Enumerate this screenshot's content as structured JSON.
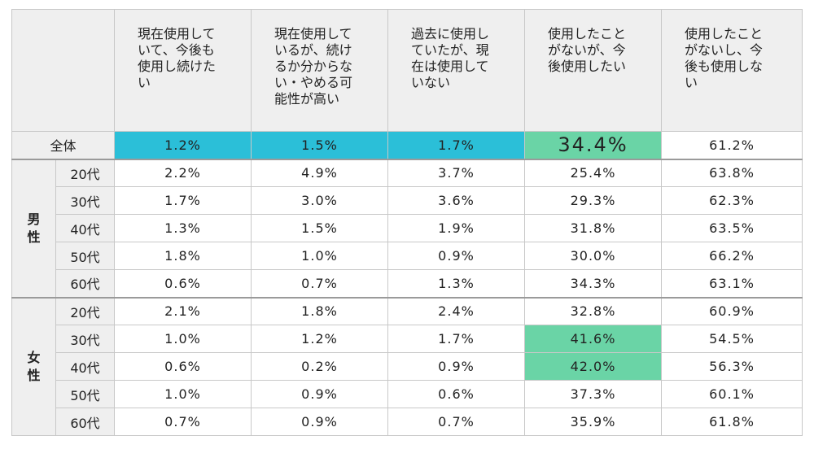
{
  "columns": [
    "現在使用して\nいて、今後も\n使用し続けた\nい",
    "現在使用して\nいるが、続け\nるか分からな\nい・やめる可\n能性が高い",
    "過去に使用し\nていたが、現\n在は使用して\nいない",
    "使用したこと\nがないが、今\n後使用したい",
    "使用したこと\nがないし、今\n後も使用しな\nい"
  ],
  "total": {
    "label": "全体",
    "values": [
      "1.2%",
      "1.5%",
      "1.7%",
      "34.4%",
      "61.2%"
    ]
  },
  "groups": [
    {
      "label": "男\n性",
      "rows": [
        {
          "age": "20代",
          "values": [
            "2.2%",
            "4.9%",
            "3.7%",
            "25.4%",
            "63.8%"
          ]
        },
        {
          "age": "30代",
          "values": [
            "1.7%",
            "3.0%",
            "3.6%",
            "29.3%",
            "62.3%"
          ]
        },
        {
          "age": "40代",
          "values": [
            "1.3%",
            "1.5%",
            "1.9%",
            "31.8%",
            "63.5%"
          ]
        },
        {
          "age": "50代",
          "values": [
            "1.8%",
            "1.0%",
            "0.9%",
            "30.0%",
            "66.2%"
          ]
        },
        {
          "age": "60代",
          "values": [
            "0.6%",
            "0.7%",
            "1.3%",
            "34.3%",
            "63.1%"
          ]
        }
      ]
    },
    {
      "label": "女\n性",
      "rows": [
        {
          "age": "20代",
          "values": [
            "2.1%",
            "1.8%",
            "2.4%",
            "32.8%",
            "60.9%"
          ]
        },
        {
          "age": "30代",
          "values": [
            "1.0%",
            "1.2%",
            "1.7%",
            "41.6%",
            "54.5%"
          ]
        },
        {
          "age": "40代",
          "values": [
            "0.6%",
            "0.2%",
            "0.9%",
            "42.0%",
            "56.3%"
          ]
        },
        {
          "age": "50代",
          "values": [
            "1.0%",
            "0.9%",
            "0.6%",
            "37.3%",
            "60.1%"
          ]
        },
        {
          "age": "60代",
          "values": [
            "0.7%",
            "0.9%",
            "0.7%",
            "35.9%",
            "61.8%"
          ]
        }
      ]
    }
  ],
  "highlight_colors": {
    "blue": "#2bbfd8",
    "green": "#6ad4a6"
  }
}
